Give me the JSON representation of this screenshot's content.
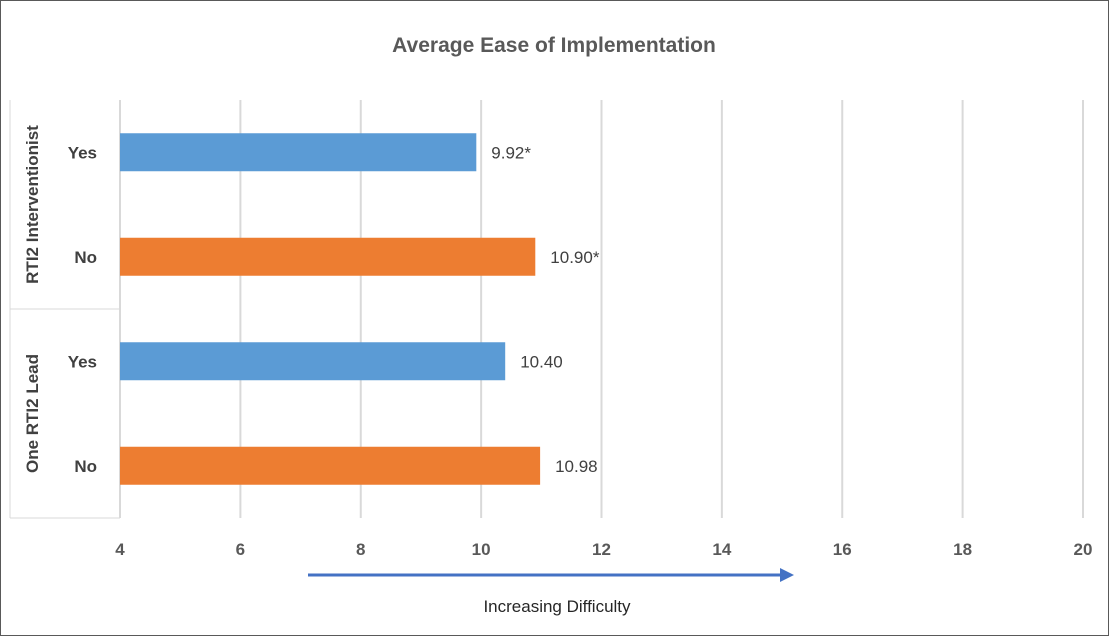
{
  "chart_data": {
    "type": "bar",
    "orientation": "horizontal",
    "title": "Average Ease of Implementation",
    "xlim": [
      4,
      20
    ],
    "x_ticks": [
      "4",
      "6",
      "8",
      "10",
      "12",
      "14",
      "16",
      "18",
      "20"
    ],
    "grid": true,
    "groups": [
      {
        "label": "RTI2 Interventionist",
        "categories": [
          {
            "label": "Yes",
            "value": 9.92,
            "data_label": "9.92*",
            "color": "#5b9bd5"
          },
          {
            "label": "No",
            "value": 10.9,
            "data_label": "10.90*",
            "color": "#ed7d31"
          }
        ]
      },
      {
        "label": "One RTI2 Lead",
        "categories": [
          {
            "label": "Yes",
            "value": 10.4,
            "data_label": "10.40",
            "color": "#5b9bd5"
          },
          {
            "label": "No",
            "value": 10.98,
            "data_label": "10.98",
            "color": "#ed7d31"
          }
        ]
      }
    ],
    "annotation": {
      "text": "Increasing Difficulty",
      "arrow_color": "#4472c4"
    }
  },
  "colors": {
    "yes": "#5b9bd5",
    "no": "#ed7d31",
    "grid": "#d9d9d9",
    "arrow": "#4472c4"
  }
}
